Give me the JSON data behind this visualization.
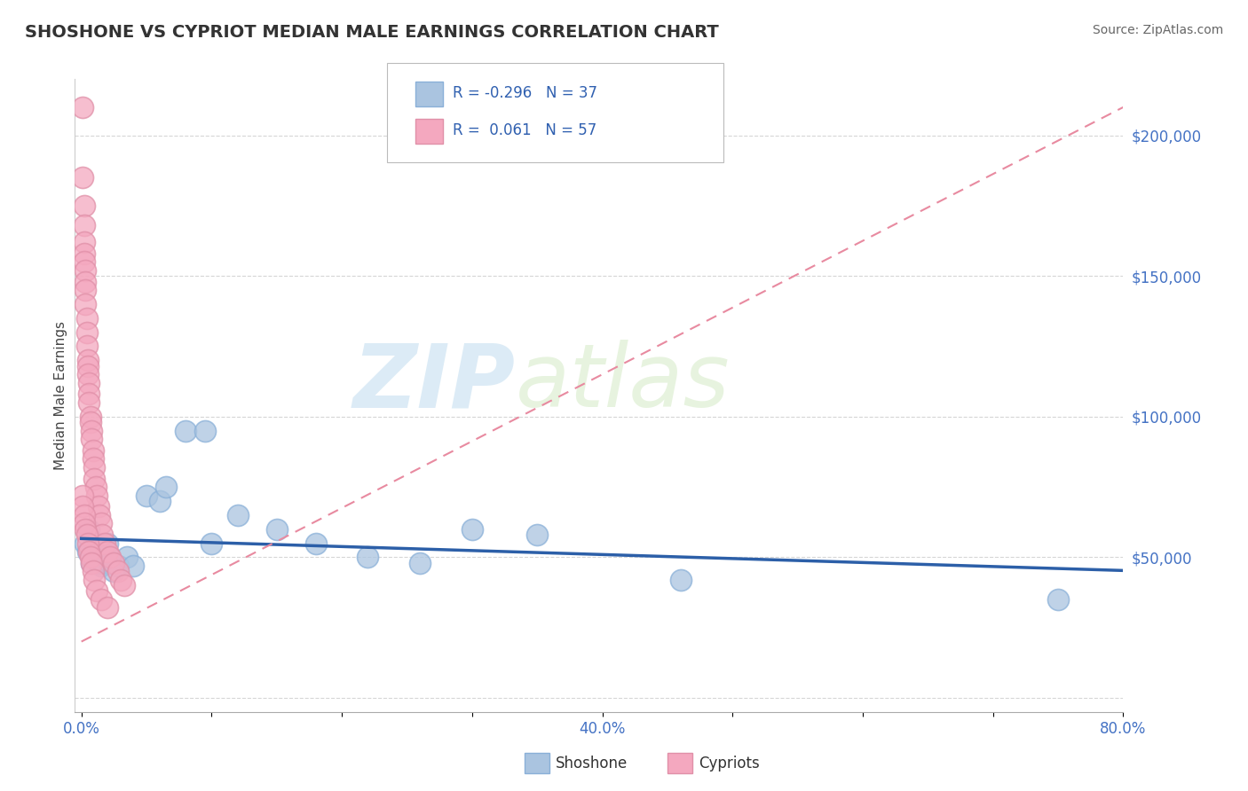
{
  "title": "SHOSHONE VS CYPRIOT MEDIAN MALE EARNINGS CORRELATION CHART",
  "source_text": "Source: ZipAtlas.com",
  "ylabel": "Median Male Earnings",
  "xlim": [
    -0.005,
    0.8
  ],
  "ylim": [
    -5000,
    220000
  ],
  "xtick_positions": [
    0.0,
    0.1,
    0.2,
    0.3,
    0.4,
    0.5,
    0.6,
    0.7,
    0.8
  ],
  "xticklabels": [
    "0.0%",
    "",
    "",
    "",
    "40.0%",
    "",
    "",
    "",
    "80.0%"
  ],
  "ytick_positions": [
    0,
    50000,
    100000,
    150000,
    200000
  ],
  "yticklabels": [
    "",
    "$50,000",
    "$100,000",
    "$150,000",
    "$200,000"
  ],
  "watermark_zip": "ZIP",
  "watermark_atlas": "atlas",
  "shoshone_color": "#aac4e0",
  "cypriot_color": "#f4a8bf",
  "shoshone_line_color": "#2c5fa8",
  "cypriot_line_color": "#e88aa0",
  "background_color": "#ffffff",
  "grid_color": "#cccccc",
  "tick_color": "#4472c4",
  "title_color": "#333333",
  "shoshone_x": [
    0.003,
    0.005,
    0.006,
    0.008,
    0.009,
    0.01,
    0.011,
    0.012,
    0.013,
    0.014,
    0.015,
    0.016,
    0.017,
    0.018,
    0.019,
    0.02,
    0.021,
    0.022,
    0.025,
    0.028,
    0.035,
    0.04,
    0.05,
    0.06,
    0.065,
    0.08,
    0.095,
    0.1,
    0.12,
    0.15,
    0.18,
    0.22,
    0.26,
    0.3,
    0.35,
    0.46,
    0.75
  ],
  "shoshone_y": [
    55000,
    52000,
    60000,
    48000,
    50000,
    55000,
    50000,
    52000,
    48000,
    50000,
    47000,
    50000,
    48000,
    52000,
    50000,
    55000,
    50000,
    48000,
    45000,
    47000,
    50000,
    47000,
    72000,
    70000,
    75000,
    95000,
    95000,
    55000,
    65000,
    60000,
    55000,
    50000,
    48000,
    60000,
    58000,
    42000,
    35000
  ],
  "cypriot_x": [
    0.001,
    0.001,
    0.001,
    0.002,
    0.002,
    0.002,
    0.002,
    0.002,
    0.003,
    0.003,
    0.003,
    0.003,
    0.004,
    0.004,
    0.004,
    0.005,
    0.005,
    0.005,
    0.006,
    0.006,
    0.006,
    0.007,
    0.007,
    0.008,
    0.008,
    0.009,
    0.009,
    0.01,
    0.01,
    0.011,
    0.012,
    0.013,
    0.014,
    0.015,
    0.016,
    0.018,
    0.02,
    0.022,
    0.025,
    0.028,
    0.03,
    0.033,
    0.001,
    0.001,
    0.002,
    0.002,
    0.003,
    0.004,
    0.005,
    0.006,
    0.007,
    0.008,
    0.009,
    0.01,
    0.012,
    0.015,
    0.02
  ],
  "cypriot_y": [
    230000,
    210000,
    185000,
    175000,
    168000,
    162000,
    158000,
    155000,
    152000,
    148000,
    145000,
    140000,
    135000,
    130000,
    125000,
    120000,
    118000,
    115000,
    112000,
    108000,
    105000,
    100000,
    98000,
    95000,
    92000,
    88000,
    85000,
    82000,
    78000,
    75000,
    72000,
    68000,
    65000,
    62000,
    58000,
    55000,
    52000,
    50000,
    48000,
    45000,
    42000,
    40000,
    72000,
    68000,
    65000,
    62000,
    60000,
    58000,
    55000,
    52000,
    50000,
    48000,
    45000,
    42000,
    38000,
    35000,
    32000
  ],
  "cypriot_trend_x0": 0.0,
  "cypriot_trend_y0": 20000,
  "cypriot_trend_x1": 0.8,
  "cypriot_trend_y1": 210000,
  "shoshone_trend_x0": 0.0,
  "shoshone_trend_x1": 0.8
}
